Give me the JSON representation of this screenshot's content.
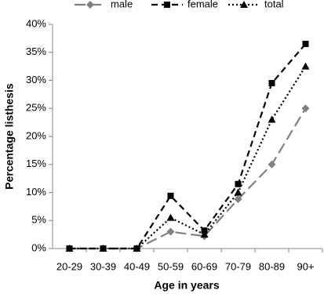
{
  "chart_data": {
    "type": "line",
    "x_label": "Age in years",
    "y_label": "Percentage listhesis",
    "categories": [
      "20-29",
      "30-39",
      "40-49",
      "50-59",
      "60-69",
      "70-79",
      "80-89",
      "90+"
    ],
    "series": [
      {
        "name": "male",
        "color": "#808080",
        "marker": "diamond",
        "dash": "long",
        "values": [
          0,
          0,
          0,
          3,
          2.2,
          8.8,
          15,
          25
        ]
      },
      {
        "name": "female",
        "color": "#000000",
        "marker": "square",
        "dash": "dash",
        "values": [
          0,
          0,
          0,
          9.4,
          3.2,
          11.5,
          29.5,
          36.5
        ]
      },
      {
        "name": "total",
        "color": "#000000",
        "marker": "triangle",
        "dash": "dot",
        "values": [
          0,
          0,
          0,
          5.5,
          2.5,
          10,
          23,
          32.5
        ]
      }
    ],
    "ylim": [
      0,
      40
    ],
    "yticks": [
      {
        "value": 0,
        "label": "0%"
      },
      {
        "value": 5,
        "label": "5%"
      },
      {
        "value": 10,
        "label": "10%"
      },
      {
        "value": 15,
        "label": "15%"
      },
      {
        "value": 20,
        "label": "20%"
      },
      {
        "value": 25,
        "label": "25%"
      },
      {
        "value": 30,
        "label": "30%"
      },
      {
        "value": 35,
        "label": "35%"
      },
      {
        "value": 40,
        "label": "40%"
      }
    ],
    "grid": false,
    "legend": "top"
  }
}
